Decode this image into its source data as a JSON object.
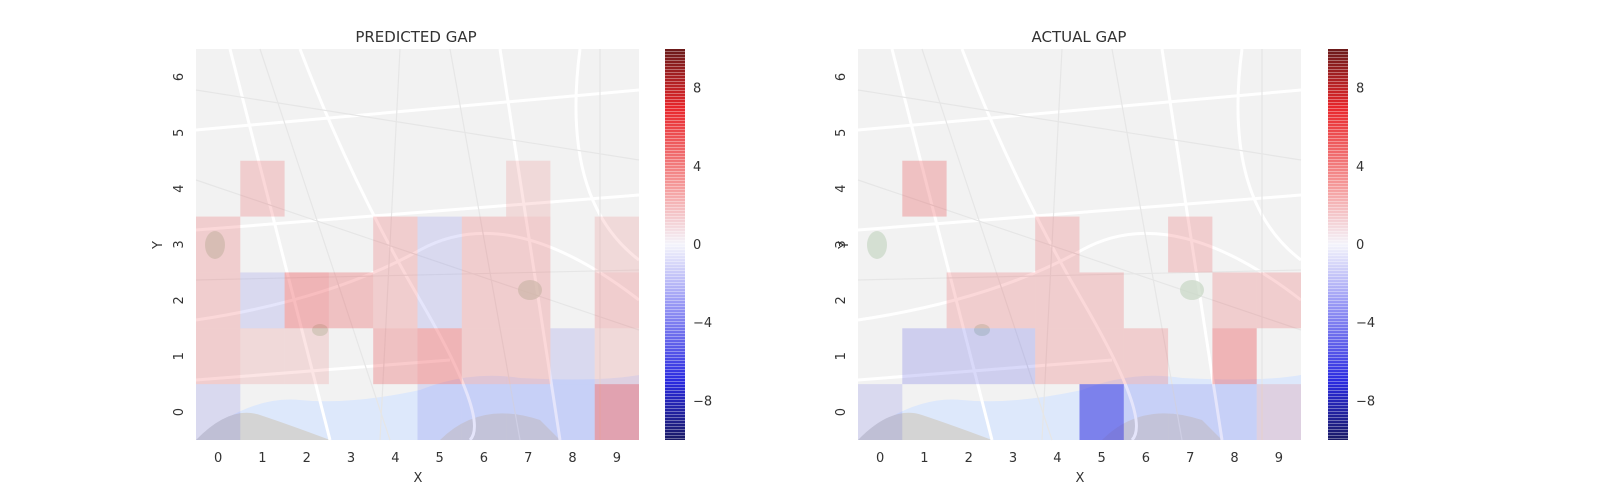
{
  "colors": {
    "positive": "#e8262b",
    "negative": "#2a2ae0",
    "background": "#ffffff"
  },
  "chart_data": [
    {
      "type": "heatmap",
      "title": "PREDICTED GAP",
      "xlabel": "X",
      "ylabel": "Y",
      "x_ticks": [
        "0",
        "1",
        "2",
        "3",
        "4",
        "5",
        "6",
        "7",
        "8",
        "9"
      ],
      "y_ticks": [
        "0",
        "1",
        "2",
        "3",
        "4",
        "5",
        "6"
      ],
      "background": "street map (greyscale)",
      "colorbar": {
        "range": [
          -10,
          10
        ],
        "ticks": [
          "8",
          "4",
          "0",
          "−4",
          "−8"
        ],
        "tick_values": [
          8,
          4,
          0,
          -4,
          -8
        ],
        "colormap": "seismic"
      },
      "cells": [
        {
          "x": 0,
          "y": 0,
          "v": -1
        },
        {
          "x": 1,
          "y": 0,
          "v": 0
        },
        {
          "x": 2,
          "y": 0,
          "v": 0
        },
        {
          "x": 3,
          "y": 0,
          "v": 0
        },
        {
          "x": 4,
          "y": 0,
          "v": 0
        },
        {
          "x": 5,
          "y": 0,
          "v": -1
        },
        {
          "x": 6,
          "y": 0,
          "v": -1
        },
        {
          "x": 7,
          "y": 0,
          "v": -1
        },
        {
          "x": 8,
          "y": 0,
          "v": -1
        },
        {
          "x": 9,
          "y": 0,
          "v": 5
        },
        {
          "x": 0,
          "y": 1,
          "v": 2
        },
        {
          "x": 1,
          "y": 1,
          "v": 1
        },
        {
          "x": 2,
          "y": 1,
          "v": 1
        },
        {
          "x": 3,
          "y": 1,
          "v": 0
        },
        {
          "x": 4,
          "y": 1,
          "v": 3
        },
        {
          "x": 5,
          "y": 1,
          "v": 4
        },
        {
          "x": 6,
          "y": 1,
          "v": 2
        },
        {
          "x": 7,
          "y": 1,
          "v": 2
        },
        {
          "x": 8,
          "y": 1,
          "v": -1
        },
        {
          "x": 9,
          "y": 1,
          "v": 1
        },
        {
          "x": 0,
          "y": 2,
          "v": 2
        },
        {
          "x": 1,
          "y": 2,
          "v": -1
        },
        {
          "x": 2,
          "y": 2,
          "v": 4
        },
        {
          "x": 3,
          "y": 2,
          "v": 3
        },
        {
          "x": 4,
          "y": 2,
          "v": 2
        },
        {
          "x": 5,
          "y": 2,
          "v": -1
        },
        {
          "x": 6,
          "y": 2,
          "v": 2
        },
        {
          "x": 7,
          "y": 2,
          "v": 2
        },
        {
          "x": 8,
          "y": 2,
          "v": 0
        },
        {
          "x": 9,
          "y": 2,
          "v": 2
        },
        {
          "x": 0,
          "y": 3,
          "v": 2
        },
        {
          "x": 1,
          "y": 3,
          "v": 0
        },
        {
          "x": 2,
          "y": 3,
          "v": 0
        },
        {
          "x": 3,
          "y": 3,
          "v": 0
        },
        {
          "x": 4,
          "y": 3,
          "v": 2
        },
        {
          "x": 5,
          "y": 3,
          "v": -1
        },
        {
          "x": 6,
          "y": 3,
          "v": 2
        },
        {
          "x": 7,
          "y": 3,
          "v": 2
        },
        {
          "x": 8,
          "y": 3,
          "v": 0
        },
        {
          "x": 9,
          "y": 3,
          "v": 1
        },
        {
          "x": 0,
          "y": 4,
          "v": 0
        },
        {
          "x": 1,
          "y": 4,
          "v": 2
        },
        {
          "x": 2,
          "y": 4,
          "v": 0
        },
        {
          "x": 3,
          "y": 4,
          "v": 0
        },
        {
          "x": 4,
          "y": 4,
          "v": 0
        },
        {
          "x": 5,
          "y": 4,
          "v": 0
        },
        {
          "x": 6,
          "y": 4,
          "v": 0
        },
        {
          "x": 7,
          "y": 4,
          "v": 1
        },
        {
          "x": 8,
          "y": 4,
          "v": 0
        },
        {
          "x": 9,
          "y": 4,
          "v": 0
        }
      ]
    },
    {
      "type": "heatmap",
      "title": "ACTUAL GAP",
      "xlabel": "X",
      "ylabel": "Y",
      "x_ticks": [
        "0",
        "1",
        "2",
        "3",
        "4",
        "5",
        "6",
        "7",
        "8",
        "9"
      ],
      "y_ticks": [
        "0",
        "1",
        "2",
        "3",
        "4",
        "5",
        "6"
      ],
      "background": "street map (greyscale)",
      "colorbar": {
        "range": [
          -10,
          10
        ],
        "ticks": [
          "8",
          "4",
          "0",
          "−4",
          "−8"
        ],
        "tick_values": [
          8,
          4,
          0,
          -4,
          -8
        ],
        "colormap": "seismic"
      },
      "cells": [
        {
          "x": 0,
          "y": 0,
          "v": -1
        },
        {
          "x": 1,
          "y": 0,
          "v": 0
        },
        {
          "x": 2,
          "y": 0,
          "v": 0
        },
        {
          "x": 3,
          "y": 0,
          "v": 0
        },
        {
          "x": 4,
          "y": 0,
          "v": 0
        },
        {
          "x": 5,
          "y": 0,
          "v": -8
        },
        {
          "x": 6,
          "y": 0,
          "v": -1
        },
        {
          "x": 7,
          "y": 0,
          "v": -1
        },
        {
          "x": 8,
          "y": 0,
          "v": -1
        },
        {
          "x": 9,
          "y": 0,
          "v": 1
        },
        {
          "x": 0,
          "y": 1,
          "v": 0
        },
        {
          "x": 1,
          "y": 1,
          "v": -2
        },
        {
          "x": 2,
          "y": 1,
          "v": -2
        },
        {
          "x": 3,
          "y": 1,
          "v": -2
        },
        {
          "x": 4,
          "y": 1,
          "v": 2
        },
        {
          "x": 5,
          "y": 1,
          "v": 2
        },
        {
          "x": 6,
          "y": 1,
          "v": 2
        },
        {
          "x": 7,
          "y": 1,
          "v": 0
        },
        {
          "x": 8,
          "y": 1,
          "v": 4
        },
        {
          "x": 9,
          "y": 1,
          "v": 0
        },
        {
          "x": 0,
          "y": 2,
          "v": 0
        },
        {
          "x": 1,
          "y": 2,
          "v": 0
        },
        {
          "x": 2,
          "y": 2,
          "v": 2
        },
        {
          "x": 3,
          "y": 2,
          "v": 2
        },
        {
          "x": 4,
          "y": 2,
          "v": 2
        },
        {
          "x": 5,
          "y": 2,
          "v": 2
        },
        {
          "x": 6,
          "y": 2,
          "v": 0
        },
        {
          "x": 7,
          "y": 2,
          "v": 0
        },
        {
          "x": 8,
          "y": 2,
          "v": 2
        },
        {
          "x": 9,
          "y": 2,
          "v": 2
        },
        {
          "x": 0,
          "y": 3,
          "v": 0
        },
        {
          "x": 1,
          "y": 3,
          "v": 0
        },
        {
          "x": 2,
          "y": 3,
          "v": 0
        },
        {
          "x": 3,
          "y": 3,
          "v": 0
        },
        {
          "x": 4,
          "y": 3,
          "v": 2
        },
        {
          "x": 5,
          "y": 3,
          "v": 0
        },
        {
          "x": 6,
          "y": 3,
          "v": 0
        },
        {
          "x": 7,
          "y": 3,
          "v": 2
        },
        {
          "x": 8,
          "y": 3,
          "v": 0
        },
        {
          "x": 9,
          "y": 3,
          "v": 0
        },
        {
          "x": 0,
          "y": 4,
          "v": 0
        },
        {
          "x": 1,
          "y": 4,
          "v": 3
        },
        {
          "x": 2,
          "y": 4,
          "v": 0
        },
        {
          "x": 3,
          "y": 4,
          "v": 0
        },
        {
          "x": 4,
          "y": 4,
          "v": 0
        },
        {
          "x": 5,
          "y": 4,
          "v": 0
        },
        {
          "x": 6,
          "y": 4,
          "v": 0
        },
        {
          "x": 7,
          "y": 4,
          "v": 0
        },
        {
          "x": 8,
          "y": 4,
          "v": 0
        },
        {
          "x": 9,
          "y": 4,
          "v": 0
        }
      ]
    }
  ]
}
